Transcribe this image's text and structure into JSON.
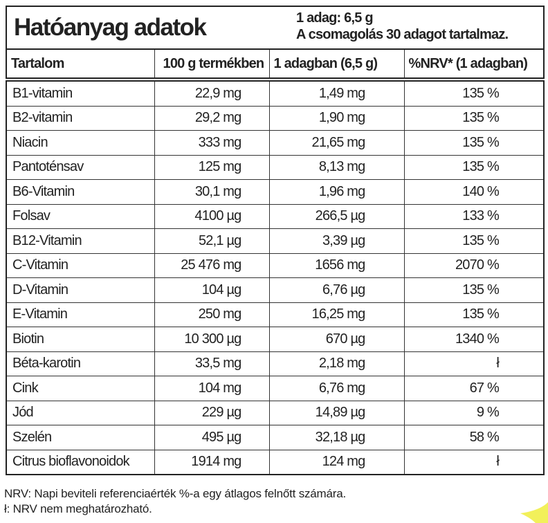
{
  "header": {
    "title": "Hatóanyag adatok",
    "serving": [
      "1 adag: 6,5 g",
      "A csomagolás 30 adagot tartalmaz."
    ]
  },
  "table": {
    "columns": [
      "Tartalom",
      "100 g termékben",
      "1 adagban (6,5 g)",
      "%NRV* (1 adagban)"
    ],
    "rows": [
      [
        "B1-vitamin",
        "22,9 mg",
        "1,49 mg",
        "135 %"
      ],
      [
        "B2-vitamin",
        "29,2 mg",
        "1,90 mg",
        "135 %"
      ],
      [
        "Niacin",
        "333 mg",
        "21,65 mg",
        "135 %"
      ],
      [
        "Pantoténsav",
        "125 mg",
        "8,13 mg",
        "135 %"
      ],
      [
        "B6-Vitamin",
        "30,1 mg",
        "1,96 mg",
        "140 %"
      ],
      [
        "Folsav",
        "4100 µg",
        "266,5 µg",
        "133 %"
      ],
      [
        "B12-Vitamin",
        "52,1 µg",
        "3,39 µg",
        "135 %"
      ],
      [
        "C-Vitamin",
        "25 476 mg",
        "1656 mg",
        "2070 %"
      ],
      [
        "D-Vitamin",
        "104 µg",
        "6,76 µg",
        "135 %"
      ],
      [
        "E-Vitamin",
        "250 mg",
        "16,25 mg",
        "135 %"
      ],
      [
        "Biotin",
        "10 300 µg",
        "670 µg",
        "1340 %"
      ],
      [
        "Béta-karotin",
        "33,5 mg",
        "2,18 mg",
        "ł"
      ],
      [
        "Cink",
        "104 mg",
        "6,76 mg",
        "67 %"
      ],
      [
        "Jód",
        "229 µg",
        "14,89 µg",
        "9 %"
      ],
      [
        "Szelén",
        "495 µg",
        "32,18 µg",
        "58 %"
      ],
      [
        "Citrus bioflavonoidok",
        "1914 mg",
        "124 mg",
        "ł"
      ]
    ]
  },
  "footnotes": [
    "NRV: Napi beviteli referenciaérték %-a egy átlagos felnőtt számára.",
    "ł: NRV nem meghatározható."
  ]
}
